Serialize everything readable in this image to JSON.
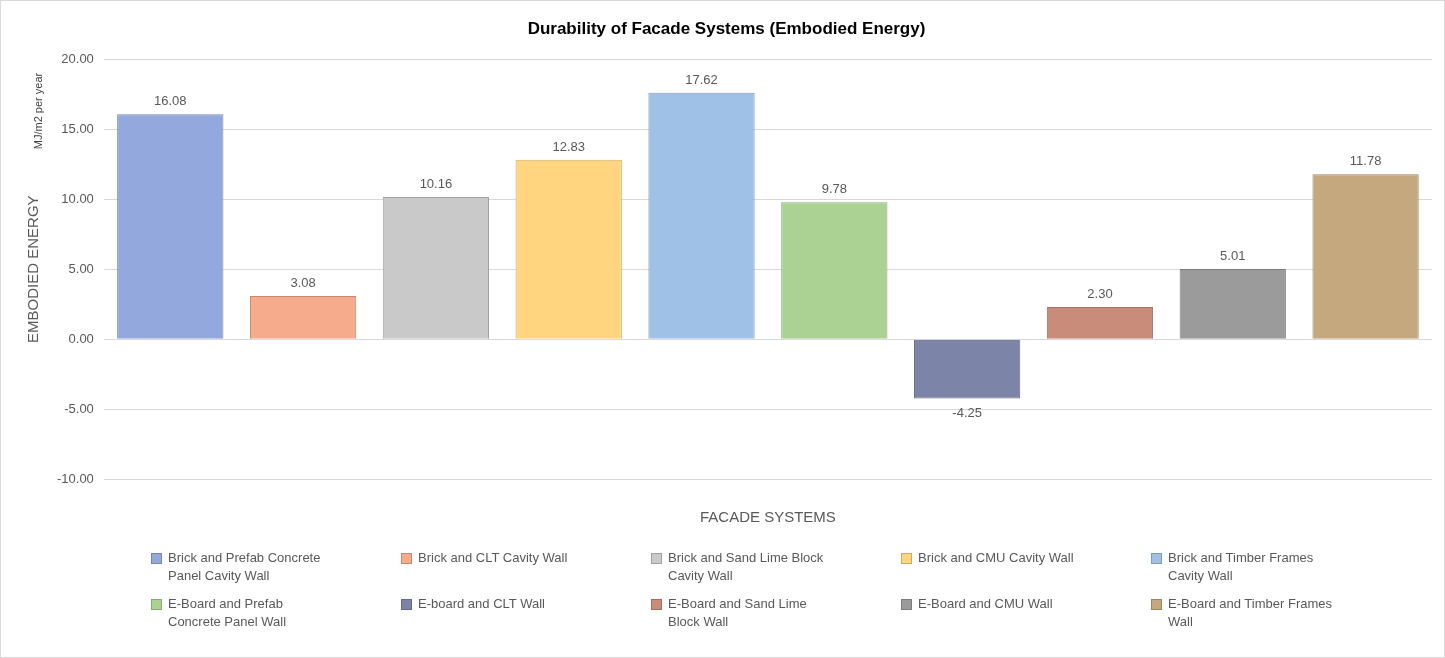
{
  "chart_data": {
    "type": "bar",
    "title": "Durability of Facade Systems (Embodied Energy)",
    "xlabel": "FACADE SYSTEMS",
    "ylabel": "EMBODIED ENERGY",
    "annotations": [
      "MJ/m2 per year"
    ],
    "categories": [
      null,
      null,
      null,
      null,
      null,
      null,
      null,
      null,
      null,
      null
    ],
    "series": [
      {
        "name": "Brick and Prefab Concrete Panel Cavity Wall",
        "color": "#93a8dc",
        "values": [
          16.08,
          null,
          null,
          null,
          null,
          null,
          null,
          null,
          null,
          null
        ],
        "value_labels": [
          "16.08",
          null,
          null,
          null,
          null,
          null,
          null,
          null,
          null,
          null
        ]
      },
      {
        "name": "Brick and CLT Cavity Wall",
        "color": "#f6ab8c",
        "values": [
          null,
          3.08,
          null,
          null,
          null,
          null,
          null,
          null,
          null,
          null
        ],
        "value_labels": [
          null,
          "3.08",
          null,
          null,
          null,
          null,
          null,
          null,
          null,
          null
        ]
      },
      {
        "name": "Brick and Sand Lime Block Cavity Wall",
        "color": "#c9c9c9",
        "values": [
          null,
          null,
          10.16,
          null,
          null,
          null,
          null,
          null,
          null,
          null
        ],
        "value_labels": [
          null,
          null,
          "10.16",
          null,
          null,
          null,
          null,
          null,
          null,
          null
        ]
      },
      {
        "name": "Brick and CMU Cavity Wall",
        "color": "#ffd580",
        "values": [
          null,
          null,
          null,
          12.83,
          null,
          null,
          null,
          null,
          null,
          null
        ],
        "value_labels": [
          null,
          null,
          null,
          "12.83",
          null,
          null,
          null,
          null,
          null,
          null
        ]
      },
      {
        "name": "Brick and Timber Frames Cavity Wall",
        "color": "#9fc1e7",
        "values": [
          null,
          null,
          null,
          null,
          17.62,
          null,
          null,
          null,
          null,
          null
        ],
        "value_labels": [
          null,
          null,
          null,
          null,
          "17.62",
          null,
          null,
          null,
          null,
          null
        ]
      },
      {
        "name": "E-Board and Prefab Concrete Panel Wall",
        "color": "#abd292",
        "values": [
          null,
          null,
          null,
          null,
          null,
          9.78,
          null,
          null,
          null,
          null
        ],
        "value_labels": [
          null,
          null,
          null,
          null,
          null,
          "9.78",
          null,
          null,
          null,
          null
        ]
      },
      {
        "name": "E-board and CLT Wall",
        "color": "#7c85a8",
        "values": [
          null,
          null,
          null,
          null,
          null,
          null,
          -4.25,
          null,
          null,
          null
        ],
        "value_labels": [
          null,
          null,
          null,
          null,
          null,
          null,
          "-4.25",
          null,
          null,
          null
        ]
      },
      {
        "name": "E-Board and Sand Lime Block Wall",
        "color": "#c98c7a",
        "values": [
          null,
          null,
          null,
          null,
          null,
          null,
          null,
          2.3,
          null,
          null
        ],
        "value_labels": [
          null,
          null,
          null,
          null,
          null,
          null,
          null,
          "2.30",
          null,
          null
        ]
      },
      {
        "name": "E-Board and CMU Wall",
        "color": "#9b9b9b",
        "values": [
          null,
          null,
          null,
          null,
          null,
          null,
          null,
          null,
          5.01,
          null
        ],
        "value_labels": [
          null,
          null,
          null,
          null,
          null,
          null,
          null,
          null,
          "5.01",
          null
        ]
      },
      {
        "name": "E-Board and Timber Frames Wall",
        "color": "#c6a87e",
        "values": [
          null,
          null,
          null,
          null,
          null,
          null,
          null,
          null,
          null,
          11.78
        ],
        "value_labels": [
          null,
          null,
          null,
          null,
          null,
          null,
          null,
          null,
          null,
          "11.78"
        ]
      }
    ],
    "ylim": [
      -10,
      20
    ],
    "yticks": [
      {
        "value": -10,
        "label": "-10.00"
      },
      {
        "value": -5,
        "label": "-5.00"
      },
      {
        "value": 0,
        "label": "0.00"
      },
      {
        "value": 5,
        "label": "5.00"
      },
      {
        "value": 10,
        "label": "10.00"
      },
      {
        "value": 15,
        "label": "15.00"
      },
      {
        "value": 20,
        "label": "20.00"
      }
    ],
    "grid": "y",
    "legend": "bottom"
  }
}
